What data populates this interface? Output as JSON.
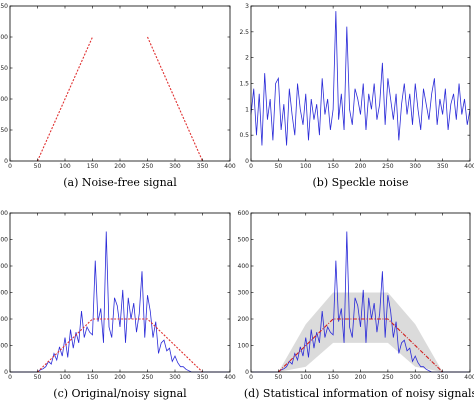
{
  "colors": {
    "signal": "#e03030",
    "noise": "#2a2ad8",
    "band": "#cfcfcf",
    "mean": "#d02020"
  },
  "chart_data": [
    {
      "id": "a",
      "type": "line",
      "caption": "(a)  Noise-free signal",
      "xlim": [
        0,
        400
      ],
      "ylim": [
        0,
        250
      ],
      "xticks": [
        0,
        50,
        100,
        150,
        200,
        250,
        300,
        350,
        400
      ],
      "yticks": [
        0,
        50,
        100,
        150,
        200,
        250
      ],
      "series": [
        {
          "style": "dashed",
          "color": "#e03030",
          "x": [
            50,
            150
          ],
          "y": [
            0,
            200
          ]
        },
        {
          "style": "dashed",
          "color": "#e03030",
          "x": [
            250,
            350
          ],
          "y": [
            200,
            0
          ]
        }
      ]
    },
    {
      "id": "b",
      "type": "line",
      "caption": "(b)  Speckle noise",
      "xlim": [
        0,
        400
      ],
      "ylim": [
        0,
        3
      ],
      "xticks": [
        0,
        50,
        100,
        150,
        200,
        250,
        300,
        350,
        400
      ],
      "yticks": [
        0,
        0.5,
        1,
        1.5,
        2,
        2.5,
        3
      ],
      "series": [
        {
          "style": "solid",
          "color": "#2a2ad8",
          "x": [
            0,
            5,
            10,
            15,
            20,
            25,
            30,
            35,
            40,
            45,
            50,
            55,
            60,
            65,
            70,
            75,
            80,
            85,
            90,
            95,
            100,
            105,
            110,
            115,
            120,
            125,
            130,
            135,
            140,
            145,
            150,
            155,
            160,
            165,
            170,
            175,
            180,
            185,
            190,
            195,
            200,
            205,
            210,
            215,
            220,
            225,
            230,
            235,
            240,
            245,
            250,
            255,
            260,
            265,
            270,
            275,
            280,
            285,
            290,
            295,
            300,
            305,
            310,
            315,
            320,
            325,
            330,
            335,
            340,
            345,
            350,
            355,
            360,
            365,
            370,
            375,
            380,
            385,
            390,
            395,
            400
          ],
          "y": [
            0.9,
            1.4,
            0.5,
            1.3,
            0.3,
            1.7,
            0.8,
            1.2,
            0.4,
            1.5,
            1.6,
            0.6,
            1.1,
            0.3,
            1.4,
            0.9,
            0.5,
            1.5,
            1.0,
            0.7,
            1.3,
            0.4,
            1.2,
            0.8,
            1.1,
            0.5,
            1.6,
            0.9,
            1.2,
            0.6,
            1.0,
            2.9,
            0.8,
            1.3,
            0.6,
            2.6,
            1.0,
            0.7,
            1.4,
            1.2,
            0.9,
            1.5,
            0.6,
            1.3,
            1.0,
            1.5,
            0.8,
            1.1,
            1.9,
            0.7,
            1.6,
            1.2,
            0.8,
            1.3,
            0.4,
            1.1,
            1.5,
            0.9,
            1.3,
            0.7,
            1.5,
            1.0,
            0.6,
            1.4,
            1.1,
            0.8,
            1.3,
            1.6,
            0.7,
            1.2,
            0.9,
            1.4,
            0.6,
            1.1,
            1.3,
            0.8,
            1.5,
            0.9,
            1.2,
            0.7,
            1.0
          ]
        }
      ]
    },
    {
      "id": "c",
      "type": "line",
      "caption": "(c)  Original/noisy signal",
      "xlim": [
        0,
        400
      ],
      "ylim": [
        0,
        600
      ],
      "xticks": [
        0,
        50,
        100,
        150,
        200,
        250,
        300,
        350,
        400
      ],
      "yticks": [
        0,
        100,
        200,
        300,
        400,
        500,
        600
      ],
      "series": [
        {
          "style": "solid",
          "color": "#2a2ad8",
          "x": [
            0,
            5,
            10,
            15,
            20,
            25,
            30,
            35,
            40,
            45,
            50,
            55,
            60,
            65,
            70,
            75,
            80,
            85,
            90,
            95,
            100,
            105,
            110,
            115,
            120,
            125,
            130,
            135,
            140,
            145,
            150,
            155,
            160,
            165,
            170,
            175,
            180,
            185,
            190,
            195,
            200,
            205,
            210,
            215,
            220,
            225,
            230,
            235,
            240,
            245,
            250,
            255,
            260,
            265,
            270,
            275,
            280,
            285,
            290,
            295,
            300,
            305,
            310,
            315,
            320,
            325,
            330,
            335,
            340,
            345,
            350,
            355,
            360,
            365,
            370,
            375,
            380,
            385,
            390,
            395,
            400
          ],
          "y": [
            0,
            0,
            0,
            0,
            0,
            0,
            0,
            0,
            0,
            0,
            0,
            8,
            12,
            20,
            40,
            30,
            70,
            45,
            95,
            60,
            130,
            55,
            160,
            90,
            150,
            110,
            230,
            130,
            170,
            150,
            140,
            420,
            190,
            240,
            110,
            530,
            170,
            130,
            280,
            250,
            170,
            310,
            110,
            280,
            200,
            260,
            150,
            220,
            380,
            130,
            290,
            230,
            130,
            190,
            70,
            110,
            120,
            80,
            90,
            40,
            60,
            35,
            20,
            20,
            10,
            5,
            0,
            0,
            0,
            0,
            0,
            0,
            0,
            0,
            0,
            0,
            0,
            0,
            0,
            0,
            0
          ]
        },
        {
          "style": "dashed",
          "color": "#e03030",
          "x": [
            50,
            150,
            250,
            350
          ],
          "y": [
            0,
            200,
            200,
            0
          ]
        }
      ]
    },
    {
      "id": "d",
      "type": "line",
      "caption": "(d)  Statistical information of noisy signals",
      "xlim": [
        0,
        400
      ],
      "ylim": [
        0,
        600
      ],
      "xticks": [
        0,
        50,
        100,
        150,
        200,
        250,
        300,
        350,
        400
      ],
      "yticks": [
        0,
        100,
        200,
        300,
        400,
        500,
        600
      ],
      "band": {
        "x": [
          50,
          100,
          150,
          250,
          300,
          350
        ],
        "lower": [
          0,
          20,
          110,
          110,
          20,
          0
        ],
        "upper": [
          0,
          180,
          300,
          300,
          180,
          0
        ]
      },
      "series": [
        {
          "style": "solid",
          "color": "#2a2ad8",
          "x": [
            0,
            5,
            10,
            15,
            20,
            25,
            30,
            35,
            40,
            45,
            50,
            55,
            60,
            65,
            70,
            75,
            80,
            85,
            90,
            95,
            100,
            105,
            110,
            115,
            120,
            125,
            130,
            135,
            140,
            145,
            150,
            155,
            160,
            165,
            170,
            175,
            180,
            185,
            190,
            195,
            200,
            205,
            210,
            215,
            220,
            225,
            230,
            235,
            240,
            245,
            250,
            255,
            260,
            265,
            270,
            275,
            280,
            285,
            290,
            295,
            300,
            305,
            310,
            315,
            320,
            325,
            330,
            335,
            340,
            345,
            350,
            355,
            360,
            365,
            370,
            375,
            380,
            385,
            390,
            395,
            400
          ],
          "y": [
            0,
            0,
            0,
            0,
            0,
            0,
            0,
            0,
            0,
            0,
            0,
            8,
            12,
            20,
            40,
            30,
            70,
            45,
            95,
            60,
            130,
            55,
            160,
            90,
            150,
            110,
            230,
            130,
            170,
            150,
            140,
            420,
            190,
            240,
            110,
            530,
            170,
            130,
            280,
            250,
            170,
            310,
            110,
            280,
            200,
            260,
            150,
            220,
            380,
            130,
            290,
            230,
            130,
            190,
            70,
            110,
            120,
            80,
            90,
            40,
            60,
            35,
            20,
            20,
            10,
            5,
            0,
            0,
            0,
            0,
            0,
            0,
            0,
            0,
            0,
            0,
            0,
            0,
            0,
            0,
            0
          ]
        },
        {
          "style": "dashdot",
          "color": "#d02020",
          "x": [
            50,
            150,
            250,
            350
          ],
          "y": [
            0,
            200,
            200,
            0
          ]
        }
      ]
    }
  ]
}
